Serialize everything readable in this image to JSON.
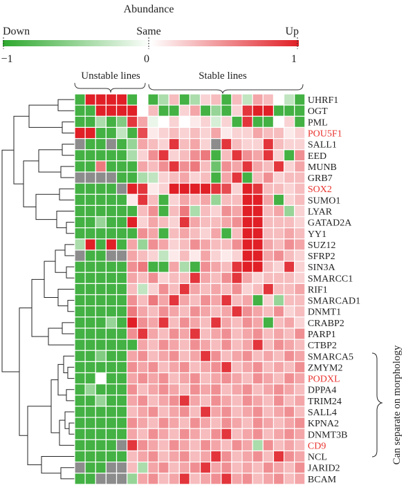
{
  "chart_data": {
    "type": "heatmap",
    "title": "Abundance",
    "scale": {
      "down_label": "Down",
      "same_label": "Same",
      "up_label": "Up",
      "ticks": [
        "−1",
        "0",
        "1"
      ],
      "min": -1,
      "max": 1,
      "colors": {
        "down": "#2ea82e",
        "same": "#ffffff",
        "up": "#e01f26",
        "missing": "#8c8c8c"
      }
    },
    "groups": [
      {
        "label": "Unstable lines",
        "start": 0,
        "end": 6
      },
      {
        "label": "Stable lines",
        "start": 7,
        "end": 21
      }
    ],
    "bracket_label": "Can separate on morphology",
    "highlight_color": "#e8332e",
    "rows": [
      {
        "gene": "UHRF1",
        "highlight": false
      },
      {
        "gene": "OGT",
        "highlight": false
      },
      {
        "gene": "PML",
        "highlight": false
      },
      {
        "gene": "POU5F1",
        "highlight": true
      },
      {
        "gene": "SALL1",
        "highlight": false
      },
      {
        "gene": "EED",
        "highlight": false
      },
      {
        "gene": "MUNB",
        "highlight": false
      },
      {
        "gene": "GRB7",
        "highlight": false
      },
      {
        "gene": "SOX2",
        "highlight": true
      },
      {
        "gene": "SUMO1",
        "highlight": false
      },
      {
        "gene": "LYAR",
        "highlight": false
      },
      {
        "gene": "GATAD2A",
        "highlight": false
      },
      {
        "gene": "YY1",
        "highlight": false
      },
      {
        "gene": "SUZ12",
        "highlight": false
      },
      {
        "gene": "SFRP2",
        "highlight": false
      },
      {
        "gene": "SIN3A",
        "highlight": false
      },
      {
        "gene": "SMARCC1",
        "highlight": false
      },
      {
        "gene": "RIF1",
        "highlight": false
      },
      {
        "gene": "SMARCAD1",
        "highlight": false
      },
      {
        "gene": "DNMT1",
        "highlight": false
      },
      {
        "gene": "CRABP2",
        "highlight": false
      },
      {
        "gene": "PARP1",
        "highlight": false
      },
      {
        "gene": "CTBP2",
        "highlight": false
      },
      {
        "gene": "SMARCA5",
        "highlight": false
      },
      {
        "gene": "ZMYM2",
        "highlight": false
      },
      {
        "gene": "PODXL",
        "highlight": true
      },
      {
        "gene": "DPPA4",
        "highlight": false
      },
      {
        "gene": "TRIM24",
        "highlight": false
      },
      {
        "gene": "SALL4",
        "highlight": false
      },
      {
        "gene": "KPNA2",
        "highlight": false
      },
      {
        "gene": "DNMT3B",
        "highlight": false
      },
      {
        "gene": "CD9",
        "highlight": true
      },
      {
        "gene": "NCL",
        "highlight": false
      },
      {
        "gene": "JARID2",
        "highlight": false
      },
      {
        "gene": "BCAM",
        "highlight": false
      }
    ],
    "values": [
      [
        -0.9,
        1,
        1,
        1,
        1,
        -0.9,
        0,
        -0.9,
        -0.4,
        0.3,
        -0.9,
        -0.4,
        0.2,
        0.3,
        -0.9,
        0.3,
        -0.3,
        0.4,
        0.3,
        0,
        -0.3,
        -0.9
      ],
      [
        -0.9,
        -0.9,
        1,
        1,
        1,
        1,
        0,
        0.3,
        -0.9,
        -0.9,
        0.2,
        0.4,
        -0.9,
        -0.5,
        -0.9,
        0.2,
        0.9,
        1,
        1,
        -0.9,
        -0.9,
        -0.9
      ],
      [
        -0.9,
        -0.9,
        -0.4,
        -0.9,
        -0.6,
        0.9,
        0.4,
        -0.1,
        0,
        0.2,
        0,
        0.1,
        0.2,
        -0.2,
        0.2,
        -0.9,
        0.9,
        -0.9,
        -0.9,
        0,
        0.2,
        -0.9
      ],
      [
        1,
        1,
        -0.9,
        -0.9,
        -0.3,
        -0.9,
        0.8,
        0.1,
        0.2,
        0.3,
        0.2,
        0.3,
        0.2,
        0.4,
        0.1,
        0.2,
        0.2,
        0.4,
        0.3,
        0.3,
        0.1,
        0.2
      ],
      [
        null,
        -0.9,
        -0.9,
        null,
        -0.9,
        -0.5,
        0.4,
        0.3,
        0.2,
        0.9,
        0.3,
        0.4,
        0.2,
        null,
        0.9,
        0.3,
        0.2,
        0.2,
        0.9,
        0.3,
        0.2,
        0.2
      ],
      [
        -0.9,
        -0.9,
        -0.9,
        -0.9,
        -0.9,
        -0.4,
        0.2,
        0.5,
        0.9,
        0.2,
        0.3,
        0.5,
        0.6,
        -0.9,
        0.3,
        0.9,
        0.5,
        0.4,
        0.9,
        0.2,
        -0.9,
        0.5
      ],
      [
        -0.9,
        -0.9,
        0.6,
        -0.9,
        -0.9,
        -0.9,
        0.4,
        0.3,
        0.5,
        0.9,
        0.5,
        0.6,
        0.3,
        -0.7,
        0.5,
        0.4,
        0.9,
        0.4,
        0.3,
        0.9,
        0.2,
        0.4
      ],
      [
        null,
        null,
        null,
        null,
        -0.9,
        -0.9,
        -0.4,
        -0.3,
        0.2,
        0.3,
        0.4,
        0.2,
        0.3,
        -0.9,
        0.4,
        0.9,
        -0.9,
        0.3,
        0.5,
        0.2,
        0.3,
        0.3
      ],
      [
        -0.9,
        -0.9,
        -0.9,
        -0.9,
        null,
        1,
        0.9,
        0.1,
        0.2,
        1,
        1,
        1,
        1,
        0.9,
        0.8,
        0.2,
        1,
        0.9,
        0.3,
        0.3,
        0.2,
        0.3
      ],
      [
        -0.9,
        -0.9,
        -0.9,
        -0.9,
        -0.9,
        0.1,
        0.9,
        0.3,
        -0.9,
        0.2,
        0.4,
        0.3,
        0.4,
        -0.5,
        0.3,
        0.3,
        1,
        1,
        0.4,
        -0.9,
        0.2,
        0.3
      ],
      [
        -0.9,
        -0.9,
        -0.9,
        -0.9,
        -0.9,
        -0.9,
        0.3,
        0.5,
        -0.9,
        0.3,
        0.6,
        -0.4,
        0.3,
        0.2,
        0.5,
        0.4,
        1,
        1,
        0.3,
        0.4,
        -0.5,
        0.2
      ],
      [
        -0.9,
        -0.9,
        -0.5,
        -0.9,
        -0.9,
        1,
        0.2,
        0.4,
        0.3,
        0.2,
        0.9,
        0.4,
        0.3,
        0.3,
        0.4,
        0.5,
        1,
        1,
        0.3,
        0.3,
        0.3,
        0.2
      ],
      [
        -0.9,
        -0.9,
        -0.9,
        -0.9,
        -0.9,
        -0.9,
        0.5,
        0.4,
        -0.9,
        0.3,
        0.4,
        0.3,
        0.2,
        0.4,
        -0.9,
        0.3,
        1,
        1,
        0.3,
        0.3,
        0.4,
        0.3
      ],
      [
        -0.4,
        1,
        -0.9,
        1,
        -0.9,
        0.4,
        -0.5,
        0.5,
        0.4,
        0.2,
        0.3,
        0.5,
        0.4,
        0.3,
        0.3,
        0.5,
        1,
        1,
        0.4,
        0.3,
        0.5,
        0.4
      ],
      [
        null,
        -0.9,
        -0.9,
        null,
        null,
        0.4,
        0.3,
        0.2,
        -0.3,
        0.1,
        0.3,
        0.1,
        0.4,
        0.2,
        0.1,
        0.2,
        1,
        1,
        0.4,
        0.5,
        0.3,
        0.2
      ],
      [
        -0.9,
        -0.9,
        -0.9,
        -0.9,
        -0.9,
        0.5,
        0.6,
        -0.9,
        -0.9,
        0.4,
        -0.4,
        -0.9,
        0.5,
        0.4,
        0.3,
        0.9,
        1,
        1,
        0.3,
        0.2,
        0.9,
        0.2
      ],
      [
        -0.9,
        -0.9,
        -0.9,
        -0.9,
        -0.9,
        0.4,
        0.3,
        0.5,
        0.2,
        0.3,
        0.3,
        0.9,
        0.4,
        0.3,
        0.5,
        0.9,
        0.4,
        0.2,
        0.3,
        0.3,
        0.3,
        0.2
      ],
      [
        -0.9,
        -0.9,
        -0.9,
        -0.9,
        -0.9,
        0.3,
        -0.3,
        0.2,
        0.5,
        0.3,
        0.9,
        0.4,
        0.3,
        0.4,
        0.3,
        0.5,
        0.2,
        0.3,
        0.9,
        0.3,
        0.3,
        0.4
      ],
      [
        -0.9,
        -0.9,
        -0.9,
        -0.9,
        -0.9,
        0.5,
        0.3,
        0.6,
        0.4,
        0.9,
        0.4,
        0.3,
        0.5,
        0.4,
        0.9,
        0.3,
        0.4,
        -0.9,
        0.2,
        -0.5,
        0.3,
        0.3
      ],
      [
        -0.9,
        -0.9,
        -0.9,
        -0.9,
        -0.9,
        0.6,
        0.4,
        0.3,
        0.5,
        0.4,
        0.3,
        0.5,
        0.4,
        0.3,
        0.4,
        0.9,
        0.5,
        0.4,
        0.3,
        0.5,
        0.2,
        0.3
      ],
      [
        -0.9,
        -0.9,
        -0.9,
        -0.5,
        -0.9,
        1,
        0.5,
        0.4,
        0.9,
        0.3,
        0.5,
        0.4,
        0.3,
        0.9,
        0.4,
        0.3,
        0.5,
        0.4,
        -0.9,
        0.3,
        0.4,
        0.2
      ],
      [
        -0.9,
        -0.9,
        -0.9,
        -0.9,
        -0.9,
        0.5,
        0.9,
        0.4,
        0.3,
        0.5,
        0.4,
        0.9,
        0.3,
        0.4,
        0.5,
        0.3,
        0.4,
        0.5,
        0.3,
        0.4,
        0.3,
        0.5
      ],
      [
        -0.9,
        -0.9,
        -0.9,
        -0.9,
        -0.9,
        -0.9,
        0.4,
        0.3,
        0.5,
        0.4,
        0.3,
        0.5,
        0.4,
        0.3,
        0.5,
        0.3,
        0.4,
        0.9,
        0.3,
        0.5,
        0.4,
        0.3
      ],
      [
        -0.9,
        -0.9,
        -0.6,
        -0.9,
        -0.9,
        0.4,
        0.5,
        0.3,
        0.4,
        0.5,
        0.3,
        0.4,
        0.9,
        0.5,
        0.3,
        0.4,
        0.5,
        0.3,
        0.4,
        0.3,
        0.5,
        0.4
      ],
      [
        -0.9,
        -0.9,
        -0.9,
        -0.9,
        -0.9,
        0.5,
        0.4,
        0.5,
        0.3,
        0.4,
        0.5,
        0.3,
        0.4,
        0.5,
        0.9,
        0.3,
        0.4,
        0.5,
        0.3,
        0.4,
        0.3,
        0.5
      ],
      [
        -0.9,
        -0.9,
        0,
        -0.9,
        -0.9,
        0.4,
        0.5,
        0.4,
        0.5,
        0.3,
        0.4,
        0.5,
        0.3,
        0.4,
        0.5,
        0.4,
        0.3,
        0.5,
        0.4,
        0.3,
        0.5,
        0.4
      ],
      [
        -0.9,
        -0.5,
        -0.9,
        -0.9,
        -0.9,
        0.5,
        0.3,
        0.4,
        0.5,
        0.4,
        0.3,
        0.5,
        0.4,
        0.5,
        0.3,
        0.4,
        0.5,
        0.3,
        0.4,
        0.5,
        0.4,
        0.3
      ],
      [
        -0.9,
        -0.9,
        -0.5,
        -0.9,
        -0.9,
        0.4,
        0.5,
        0.3,
        0.4,
        0.5,
        0.9,
        0.4,
        0.3,
        0.5,
        0.4,
        0.3,
        0.5,
        0.4,
        0.3,
        0.5,
        0.3,
        0.4
      ],
      [
        -0.9,
        -0.9,
        -0.9,
        -0.9,
        -0.9,
        0.3,
        0.4,
        0.5,
        0.3,
        0.4,
        0.5,
        0.3,
        0.9,
        0.4,
        0.5,
        0.3,
        0.4,
        0.5,
        0.3,
        0.4,
        0.5,
        0.3
      ],
      [
        -0.9,
        -0.9,
        -0.9,
        -0.9,
        -0.9,
        0.5,
        0.4,
        0.3,
        0.5,
        0.4,
        0.3,
        0.5,
        0.4,
        0.3,
        0.5,
        0.4,
        0.3,
        0.5,
        0.4,
        0.3,
        0.4,
        0.5
      ],
      [
        -0.9,
        -0.9,
        -0.9,
        -0.9,
        -0.9,
        0.4,
        0.3,
        0.5,
        0.4,
        0.3,
        0.5,
        0.4,
        0.3,
        0.5,
        0.9,
        0.3,
        0.4,
        0.5,
        0.3,
        0.4,
        0.5,
        0.4
      ],
      [
        -0.9,
        -0.9,
        -0.9,
        -0.9,
        null,
        0.9,
        0.5,
        0.4,
        0.3,
        0.5,
        0.4,
        0.3,
        0.5,
        0.4,
        0.3,
        0.5,
        0.4,
        -0.4,
        0.5,
        0.3,
        0.4,
        0.3
      ],
      [
        -0.9,
        -0.9,
        -0.9,
        -0.9,
        -0.9,
        0.3,
        0.4,
        0.5,
        0.3,
        0.4,
        0.5,
        0.3,
        0.4,
        0.9,
        0.5,
        0.3,
        0.4,
        0.5,
        0.3,
        0.9,
        0.5,
        0.4
      ],
      [
        null,
        -0.9,
        -0.9,
        null,
        null,
        0.3,
        -0.4,
        0.4,
        0.5,
        0.3,
        0.4,
        0.5,
        0.9,
        0.4,
        0.5,
        0.3,
        0.4,
        0.3,
        0.5,
        0.4,
        0.3,
        0.5
      ],
      [
        -0.9,
        -0.9,
        null,
        null,
        null,
        -0.5,
        0.4,
        0.5,
        0.3,
        0.4,
        0.9,
        0.3,
        0.4,
        0.5,
        0.9,
        0.4,
        0.5,
        0.3,
        0.4,
        0.5,
        0.3,
        0.4
      ]
    ]
  }
}
